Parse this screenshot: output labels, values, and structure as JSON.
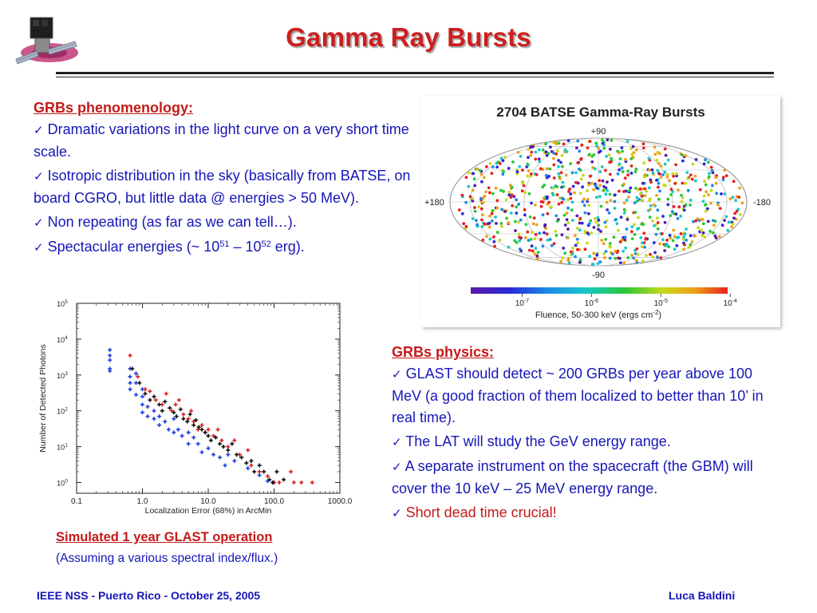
{
  "slide": {
    "title": "Gamma Ray Bursts",
    "logo_icon": "glast-satellite-icon",
    "accent_color": "#cc1f1f",
    "text_color": "#1616b8"
  },
  "phenomenology": {
    "heading": "GRBs phenomenology:",
    "items": [
      "Dramatic variations in the light curve on a very short time scale.",
      "Isotropic distribution in the sky (basically from BATSE, on board CGRO, but little data @ energies > 50 MeV).",
      "Non repeating (as far as we can tell…)."
    ],
    "energies": {
      "prefix": "Spectacular energies (~ 10",
      "exp1": "51",
      "mid": " – 10",
      "exp2": "52",
      "suffix": " erg)."
    }
  },
  "physics": {
    "heading": "GRBs physics:",
    "items": [
      "GLAST should detect ~ 200 GRBs per year above 100 MeV (a good fraction of them localized to better than 10’ in real time).",
      "The LAT will study the GeV energy range.",
      "A separate instrument on the spacecraft (the GBM) will cover the 10 keV – 25 MeV energy range."
    ],
    "highlight_item": "Short dead time crucial!"
  },
  "check_glyph": "✓",
  "sky_map": {
    "title": "2704 BATSE Gamma-Ray Bursts",
    "lat_top": "+90",
    "lat_bottom": "-90",
    "lon_left": "+180",
    "lon_right": "-180",
    "colorbar_ticks": [
      {
        "base": "10",
        "exp": "-7"
      },
      {
        "base": "10",
        "exp": "-6"
      },
      {
        "base": "10",
        "exp": "-5"
      },
      {
        "base": "10",
        "exp": "-4"
      }
    ],
    "colorbar_label_prefix": "Fluence, 50-300 keV (ergs cm",
    "colorbar_label_exp": "-2",
    "colorbar_label_suffix": ")",
    "colors": [
      "#5a1aa8",
      "#2a2ad8",
      "#1a8ae8",
      "#18c8c8",
      "#28c838",
      "#c8d818",
      "#f0a018",
      "#e82020"
    ]
  },
  "chart_data": {
    "type": "scatter",
    "title": "",
    "xlabel": "Localization Error (68%) in ArcMin",
    "ylabel": "Number of Detected Photons",
    "xscale": "log",
    "yscale": "log",
    "xlim": [
      0.1,
      1000
    ],
    "ylim": [
      0.5,
      100000
    ],
    "x_ticks": [
      "0.1",
      "1.0",
      "10.0",
      "100.0",
      "1000.0"
    ],
    "y_ticks": [
      {
        "base": "10",
        "exp": "0"
      },
      {
        "base": "10",
        "exp": "1"
      },
      {
        "base": "10",
        "exp": "2"
      },
      {
        "base": "10",
        "exp": "3"
      },
      {
        "base": "10",
        "exp": "4"
      },
      {
        "base": "10",
        "exp": "5"
      }
    ],
    "series": [
      {
        "color": "#1f3fe0",
        "points": [
          [
            0.32,
            5000
          ],
          [
            0.32,
            3500
          ],
          [
            0.32,
            2600
          ],
          [
            0.32,
            1500
          ],
          [
            0.32,
            1300
          ],
          [
            0.65,
            1500
          ],
          [
            0.65,
            900
          ],
          [
            0.65,
            600
          ],
          [
            0.65,
            400
          ],
          [
            0.8,
            1100
          ],
          [
            0.8,
            600
          ],
          [
            0.8,
            280
          ],
          [
            1.0,
            400
          ],
          [
            1.0,
            250
          ],
          [
            1.0,
            150
          ],
          [
            1.0,
            90
          ],
          [
            1.2,
            130
          ],
          [
            1.2,
            70
          ],
          [
            1.5,
            100
          ],
          [
            1.5,
            60
          ],
          [
            1.8,
            70
          ],
          [
            1.8,
            40
          ],
          [
            2.2,
            50
          ],
          [
            2.5,
            30
          ],
          [
            3.0,
            60
          ],
          [
            3.0,
            25
          ],
          [
            3.5,
            30
          ],
          [
            4.0,
            20
          ],
          [
            5.0,
            25
          ],
          [
            5.0,
            12
          ],
          [
            6.0,
            18
          ],
          [
            7.0,
            12
          ],
          [
            8.0,
            7
          ],
          [
            10.0,
            9
          ],
          [
            12.0,
            6
          ],
          [
            15.0,
            5
          ],
          [
            18.0,
            3
          ],
          [
            20.0,
            6
          ],
          [
            25.0,
            4
          ],
          [
            40.0,
            2.5
          ],
          [
            60.0,
            1.6
          ],
          [
            80.0,
            1.1
          ],
          [
            100.0,
            1.0
          ]
        ]
      },
      {
        "color": "#e01f1f",
        "points": [
          [
            0.65,
            3500
          ],
          [
            0.85,
            900
          ],
          [
            1.1,
            400
          ],
          [
            1.3,
            350
          ],
          [
            1.6,
            200
          ],
          [
            2.0,
            150
          ],
          [
            2.3,
            300
          ],
          [
            2.8,
            100
          ],
          [
            3.2,
            150
          ],
          [
            3.6,
            200
          ],
          [
            4.2,
            80
          ],
          [
            5.0,
            60
          ],
          [
            5.5,
            100
          ],
          [
            6.0,
            50
          ],
          [
            7.0,
            30
          ],
          [
            8.0,
            40
          ],
          [
            9.0,
            25
          ],
          [
            10.0,
            30
          ],
          [
            12.0,
            20
          ],
          [
            14.0,
            30
          ],
          [
            16.0,
            15
          ],
          [
            20.0,
            10
          ],
          [
            25.0,
            15
          ],
          [
            30.0,
            6
          ],
          [
            40.0,
            8
          ],
          [
            45.0,
            3
          ],
          [
            60.0,
            2
          ],
          [
            80.0,
            1.5
          ],
          [
            100.0,
            1.0
          ],
          [
            120.0,
            1.0
          ],
          [
            180.0,
            2
          ],
          [
            200.0,
            1
          ],
          [
            260.0,
            1
          ],
          [
            380.0,
            1
          ]
        ]
      },
      {
        "color": "#111111",
        "points": [
          [
            0.7,
            1500
          ],
          [
            0.9,
            600
          ],
          [
            1.1,
            300
          ],
          [
            1.3,
            200
          ],
          [
            1.5,
            250
          ],
          [
            1.8,
            150
          ],
          [
            2.0,
            100
          ],
          [
            2.2,
            180
          ],
          [
            2.6,
            120
          ],
          [
            3.0,
            90
          ],
          [
            3.3,
            70
          ],
          [
            3.8,
            110
          ],
          [
            4.2,
            60
          ],
          [
            4.8,
            50
          ],
          [
            5.3,
            80
          ],
          [
            6.0,
            40
          ],
          [
            6.5,
            55
          ],
          [
            7.2,
            35
          ],
          [
            8.0,
            30
          ],
          [
            9.0,
            25
          ],
          [
            10.0,
            20
          ],
          [
            11.0,
            15
          ],
          [
            13.0,
            18
          ],
          [
            15.0,
            12
          ],
          [
            17.0,
            10
          ],
          [
            20.0,
            8
          ],
          [
            23.0,
            12
          ],
          [
            27.0,
            6
          ],
          [
            32.0,
            5
          ],
          [
            38.0,
            3.5
          ],
          [
            45.0,
            4
          ],
          [
            50.0,
            2
          ],
          [
            60.0,
            3
          ],
          [
            70.0,
            2
          ],
          [
            85.0,
            1.2
          ],
          [
            95.0,
            1.0
          ],
          [
            110.0,
            2
          ],
          [
            140.0,
            1.2
          ]
        ]
      }
    ]
  },
  "caption": {
    "title": "Simulated 1 year GLAST operation",
    "subtitle": "(Assuming a various spectral index/flux.)"
  },
  "footer": {
    "left": "IEEE NSS - Puerto Rico - October 25, 2005",
    "right": "Luca Baldini"
  }
}
